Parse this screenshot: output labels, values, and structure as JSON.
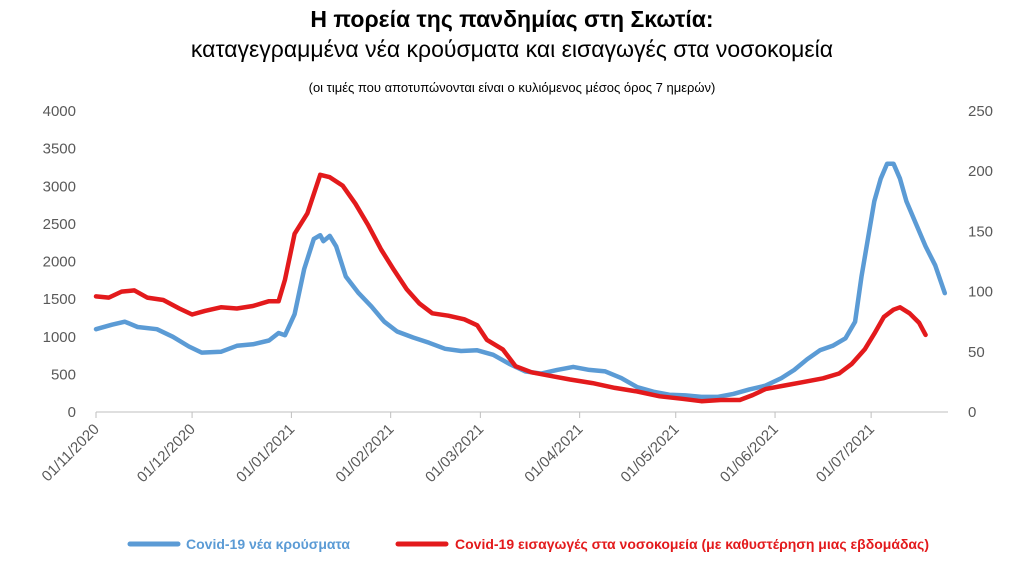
{
  "chart_data": {
    "type": "line",
    "title": "Η πορεία της πανδημίας στη Σκωτία:",
    "subtitle": "καταγεγραμμένα νέα κρούσματα και εισαγωγές στα νοσοκομεία",
    "note": "(οι τιμές που αποτυπώνονται είναι ο κυλιόμενος μέσος όρος 7 ημερών)",
    "x_ticks": [
      "01/11/2020",
      "01/12/2020",
      "01/01/2021",
      "01/02/2021",
      "01/03/2021",
      "01/04/2021",
      "01/05/2021",
      "01/06/2021",
      "01/07/2021"
    ],
    "y_left": {
      "min": 0,
      "max": 4000,
      "ticks": [
        0,
        500,
        1000,
        1500,
        2000,
        2500,
        3000,
        3500,
        4000
      ]
    },
    "y_right": {
      "min": 0,
      "max": 250,
      "ticks": [
        0,
        50,
        100,
        150,
        200,
        250
      ]
    },
    "grid": false,
    "legend_position": "bottom",
    "series": [
      {
        "name": "Covid-19 νέα κρούσματα",
        "axis": "left",
        "color": "#5b9bd5",
        "points": [
          [
            "01/11/2020",
            1100
          ],
          [
            "06/11/2020",
            1160
          ],
          [
            "10/11/2020",
            1200
          ],
          [
            "14/11/2020",
            1130
          ],
          [
            "20/11/2020",
            1100
          ],
          [
            "25/11/2020",
            1000
          ],
          [
            "30/11/2020",
            870
          ],
          [
            "04/12/2020",
            790
          ],
          [
            "10/12/2020",
            800
          ],
          [
            "15/12/2020",
            880
          ],
          [
            "20/12/2020",
            900
          ],
          [
            "25/12/2020",
            950
          ],
          [
            "28/12/2020",
            1050
          ],
          [
            "30/12/2020",
            1020
          ],
          [
            "02/01/2021",
            1300
          ],
          [
            "05/01/2021",
            1900
          ],
          [
            "08/01/2021",
            2300
          ],
          [
            "10/01/2021",
            2350
          ],
          [
            "11/01/2021",
            2270
          ],
          [
            "13/01/2021",
            2340
          ],
          [
            "15/01/2021",
            2200
          ],
          [
            "18/01/2021",
            1800
          ],
          [
            "22/01/2021",
            1580
          ],
          [
            "26/01/2021",
            1400
          ],
          [
            "30/01/2021",
            1200
          ],
          [
            "03/02/2021",
            1070
          ],
          [
            "08/02/2021",
            990
          ],
          [
            "13/02/2021",
            920
          ],
          [
            "18/02/2021",
            840
          ],
          [
            "23/02/2021",
            810
          ],
          [
            "28/02/2021",
            820
          ],
          [
            "05/03/2021",
            760
          ],
          [
            "10/03/2021",
            640
          ],
          [
            "15/03/2021",
            540
          ],
          [
            "20/03/2021",
            510
          ],
          [
            "25/03/2021",
            560
          ],
          [
            "30/03/2021",
            600
          ],
          [
            "04/04/2021",
            560
          ],
          [
            "09/04/2021",
            540
          ],
          [
            "14/04/2021",
            450
          ],
          [
            "19/04/2021",
            330
          ],
          [
            "24/04/2021",
            270
          ],
          [
            "29/04/2021",
            230
          ],
          [
            "04/05/2021",
            220
          ],
          [
            "09/05/2021",
            200
          ],
          [
            "14/05/2021",
            200
          ],
          [
            "19/05/2021",
            240
          ],
          [
            "24/05/2021",
            300
          ],
          [
            "29/05/2021",
            350
          ],
          [
            "03/06/2021",
            450
          ],
          [
            "07/06/2021",
            560
          ],
          [
            "11/06/2021",
            700
          ],
          [
            "15/06/2021",
            820
          ],
          [
            "19/06/2021",
            880
          ],
          [
            "23/06/2021",
            980
          ],
          [
            "26/06/2021",
            1200
          ],
          [
            "28/06/2021",
            1800
          ],
          [
            "30/06/2021",
            2300
          ],
          [
            "02/07/2021",
            2800
          ],
          [
            "04/07/2021",
            3100
          ],
          [
            "06/07/2021",
            3300
          ],
          [
            "08/07/2021",
            3300
          ],
          [
            "10/07/2021",
            3100
          ],
          [
            "12/07/2021",
            2800
          ],
          [
            "15/07/2021",
            2500
          ],
          [
            "18/07/2021",
            2200
          ],
          [
            "21/07/2021",
            1950
          ],
          [
            "24/07/2021",
            1580
          ]
        ]
      },
      {
        "name": "Covid-19 εισαγωγές στα νοσοκομεία (με καθυστέρηση μιας εβδομάδας)",
        "axis": "right",
        "color": "#e31a1c",
        "points": [
          [
            "01/11/2020",
            96
          ],
          [
            "05/11/2020",
            95
          ],
          [
            "09/11/2020",
            100
          ],
          [
            "13/11/2020",
            101
          ],
          [
            "17/11/2020",
            95
          ],
          [
            "22/11/2020",
            93
          ],
          [
            "27/11/2020",
            86
          ],
          [
            "01/12/2020",
            81
          ],
          [
            "05/12/2020",
            84
          ],
          [
            "10/12/2020",
            87
          ],
          [
            "15/12/2020",
            86
          ],
          [
            "20/12/2020",
            88
          ],
          [
            "25/12/2020",
            92
          ],
          [
            "28/12/2020",
            92
          ],
          [
            "30/12/2020",
            110
          ],
          [
            "02/01/2021",
            148
          ],
          [
            "06/01/2021",
            165
          ],
          [
            "10/01/2021",
            197
          ],
          [
            "13/01/2021",
            195
          ],
          [
            "17/01/2021",
            188
          ],
          [
            "21/01/2021",
            173
          ],
          [
            "25/01/2021",
            155
          ],
          [
            "29/01/2021",
            135
          ],
          [
            "02/02/2021",
            118
          ],
          [
            "06/02/2021",
            102
          ],
          [
            "10/02/2021",
            90
          ],
          [
            "14/02/2021",
            82
          ],
          [
            "19/02/2021",
            80
          ],
          [
            "24/02/2021",
            77
          ],
          [
            "28/02/2021",
            72
          ],
          [
            "03/03/2021",
            60
          ],
          [
            "08/03/2021",
            52
          ],
          [
            "12/03/2021",
            38
          ],
          [
            "17/03/2021",
            33
          ],
          [
            "23/03/2021",
            30
          ],
          [
            "29/03/2021",
            27
          ],
          [
            "05/04/2021",
            24
          ],
          [
            "12/04/2021",
            20
          ],
          [
            "19/04/2021",
            17
          ],
          [
            "26/04/2021",
            13
          ],
          [
            "03/05/2021",
            11
          ],
          [
            "09/05/2021",
            9
          ],
          [
            "15/05/2021",
            10
          ],
          [
            "21/05/2021",
            10
          ],
          [
            "25/05/2021",
            14
          ],
          [
            "29/05/2021",
            19
          ],
          [
            "04/06/2021",
            22
          ],
          [
            "10/06/2021",
            25
          ],
          [
            "16/06/2021",
            28
          ],
          [
            "21/06/2021",
            32
          ],
          [
            "25/06/2021",
            40
          ],
          [
            "29/06/2021",
            52
          ],
          [
            "02/07/2021",
            65
          ],
          [
            "05/07/2021",
            79
          ],
          [
            "08/07/2021",
            85
          ],
          [
            "10/07/2021",
            87
          ],
          [
            "13/07/2021",
            82
          ],
          [
            "16/07/2021",
            74
          ],
          [
            "18/07/2021",
            64
          ]
        ]
      }
    ]
  }
}
